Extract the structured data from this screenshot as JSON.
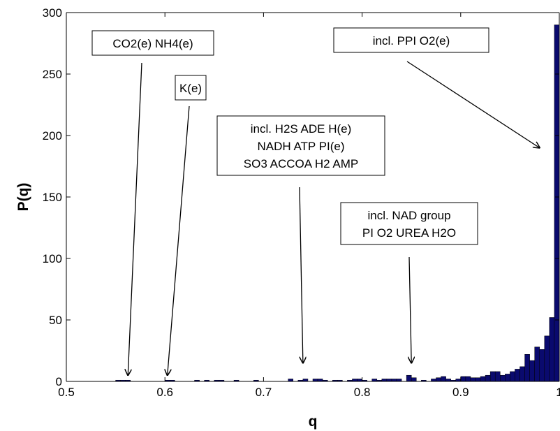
{
  "chart_data": {
    "type": "bar",
    "title": "",
    "xlabel": "q",
    "ylabel": "P(q)",
    "xlim": [
      0.5,
      1.0
    ],
    "ylim": [
      0,
      300
    ],
    "xticks": [
      "0.5",
      "0.6",
      "0.7",
      "0.8",
      "0.9",
      "1"
    ],
    "yticks": [
      "0",
      "50",
      "100",
      "150",
      "200",
      "250",
      "300"
    ],
    "grid": false,
    "bar_color": "#0a0a6e",
    "bin_width": 0.005,
    "bins": [
      {
        "x": 0.5525,
        "y": 1
      },
      {
        "x": 0.5575,
        "y": 1
      },
      {
        "x": 0.5625,
        "y": 1
      },
      {
        "x": 0.6025,
        "y": 1
      },
      {
        "x": 0.6075,
        "y": 1
      },
      {
        "x": 0.6325,
        "y": 1
      },
      {
        "x": 0.6425,
        "y": 1
      },
      {
        "x": 0.6525,
        "y": 1
      },
      {
        "x": 0.6575,
        "y": 1
      },
      {
        "x": 0.6725,
        "y": 1
      },
      {
        "x": 0.6925,
        "y": 1
      },
      {
        "x": 0.7275,
        "y": 2
      },
      {
        "x": 0.7375,
        "y": 1
      },
      {
        "x": 0.7425,
        "y": 2
      },
      {
        "x": 0.7525,
        "y": 2
      },
      {
        "x": 0.7575,
        "y": 2
      },
      {
        "x": 0.7625,
        "y": 1
      },
      {
        "x": 0.7725,
        "y": 1
      },
      {
        "x": 0.7775,
        "y": 1
      },
      {
        "x": 0.7875,
        "y": 1
      },
      {
        "x": 0.7925,
        "y": 2
      },
      {
        "x": 0.7975,
        "y": 2
      },
      {
        "x": 0.8025,
        "y": 1
      },
      {
        "x": 0.8125,
        "y": 2
      },
      {
        "x": 0.8175,
        "y": 1
      },
      {
        "x": 0.8225,
        "y": 2
      },
      {
        "x": 0.8275,
        "y": 2
      },
      {
        "x": 0.8325,
        "y": 2
      },
      {
        "x": 0.8375,
        "y": 2
      },
      {
        "x": 0.8475,
        "y": 5
      },
      {
        "x": 0.8525,
        "y": 3
      },
      {
        "x": 0.8625,
        "y": 1
      },
      {
        "x": 0.8725,
        "y": 2
      },
      {
        "x": 0.8775,
        "y": 3
      },
      {
        "x": 0.8825,
        "y": 4
      },
      {
        "x": 0.8875,
        "y": 2
      },
      {
        "x": 0.8925,
        "y": 1
      },
      {
        "x": 0.8975,
        "y": 2
      },
      {
        "x": 0.9025,
        "y": 4
      },
      {
        "x": 0.9075,
        "y": 4
      },
      {
        "x": 0.9125,
        "y": 3
      },
      {
        "x": 0.9175,
        "y": 3
      },
      {
        "x": 0.9225,
        "y": 4
      },
      {
        "x": 0.9275,
        "y": 5
      },
      {
        "x": 0.9325,
        "y": 8
      },
      {
        "x": 0.9375,
        "y": 8
      },
      {
        "x": 0.9425,
        "y": 5
      },
      {
        "x": 0.9475,
        "y": 6
      },
      {
        "x": 0.9525,
        "y": 8
      },
      {
        "x": 0.9575,
        "y": 10
      },
      {
        "x": 0.9625,
        "y": 12
      },
      {
        "x": 0.9675,
        "y": 22
      },
      {
        "x": 0.9725,
        "y": 17
      },
      {
        "x": 0.9775,
        "y": 28
      },
      {
        "x": 0.9825,
        "y": 26
      },
      {
        "x": 0.9875,
        "y": 37
      },
      {
        "x": 0.9925,
        "y": 52
      },
      {
        "x": 0.9975,
        "y": 290
      }
    ],
    "annotations": [
      {
        "lines": [
          "CO2(e)  NH4(e)"
        ],
        "points_to": [
          0.5625,
          5
        ]
      },
      {
        "lines": [
          "K(e)"
        ],
        "points_to": [
          0.6025,
          5
        ]
      },
      {
        "lines": [
          "incl. H2S  ADE  H(e)",
          "NADH  ATP  PI(e)",
          "SO3 ACCOA H2 AMP"
        ],
        "points_to": [
          0.74,
          15
        ]
      },
      {
        "lines": [
          "incl. NAD group",
          "PI O2 UREA H2O"
        ],
        "points_to": [
          0.85,
          15
        ]
      },
      {
        "lines": [
          "incl. PPI  O2(e)"
        ],
        "points_to": [
          0.98,
          190
        ]
      }
    ]
  }
}
